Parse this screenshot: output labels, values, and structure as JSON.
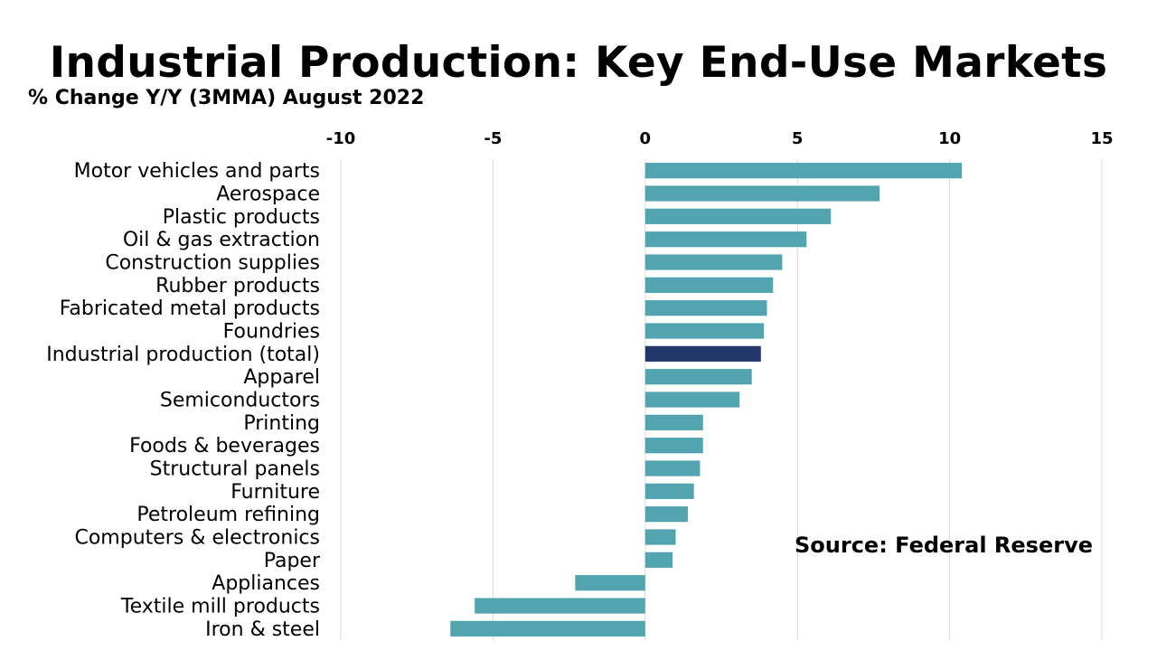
{
  "chart_data": {
    "type": "bar",
    "orientation": "horizontal",
    "title": "Industrial Production: Key End-Use Markets",
    "subtitle": "% Change Y/Y (3MMA) August 2022",
    "source": "Source: Federal Reserve",
    "xlim": [
      -10,
      15
    ],
    "xticks": [
      -10,
      -5,
      0,
      5,
      10,
      15
    ],
    "xtick_labels": [
      "-10",
      "-5",
      "0",
      "5",
      "10",
      "15"
    ],
    "grid": true,
    "categories": [
      "Motor vehicles and parts",
      "Aerospace",
      "Plastic products",
      "Oil & gas extraction",
      "Construction supplies",
      "Rubber products",
      "Fabricated metal products",
      "Foundries",
      "Industrial production (total)",
      "Apparel",
      "Semiconductors",
      "Printing",
      "Foods & beverages",
      "Structural panels",
      "Furniture",
      "Petroleum refining",
      "Computers & electronics",
      "Paper",
      "Appliances",
      "Textile mill products",
      "Iron & steel"
    ],
    "values": [
      10.4,
      7.7,
      6.1,
      5.3,
      4.5,
      4.2,
      4.0,
      3.9,
      3.8,
      3.5,
      3.1,
      1.9,
      1.9,
      1.8,
      1.6,
      1.4,
      1.0,
      0.9,
      -2.3,
      -5.6,
      -6.4
    ],
    "colors": {
      "default": "#52a5ae",
      "highlight": "#22366a",
      "highlight_category": "Industrial production (total)",
      "grid": "#d9d9d9"
    }
  }
}
